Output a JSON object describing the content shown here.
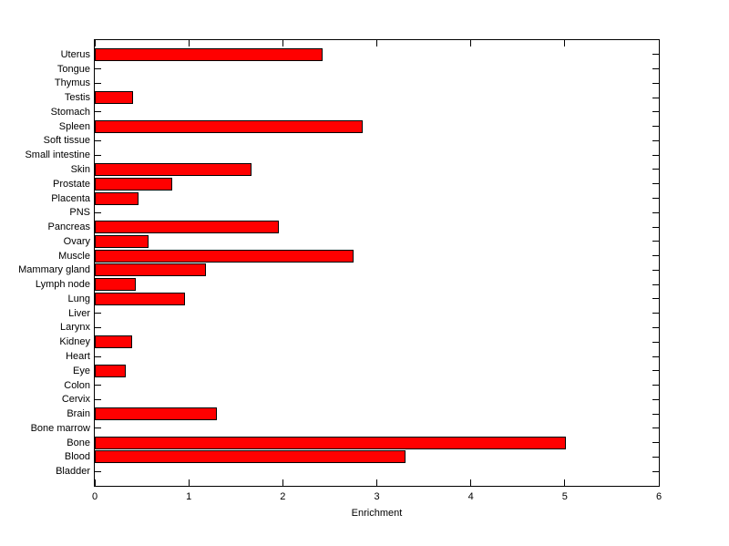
{
  "figure": {
    "background_color": "#ffffff"
  },
  "chart_data": {
    "type": "bar",
    "orientation": "horizontal",
    "title": "",
    "xlabel": "Enrichment",
    "ylabel": "",
    "xlim": [
      0,
      6
    ],
    "xticks": [
      0,
      1,
      2,
      3,
      4,
      5,
      6
    ],
    "grid": false,
    "bar_color": "#ff0000",
    "bar_edge_color": "#000000",
    "axis_color": "#000000",
    "categories": [
      "Uterus",
      "Tongue",
      "Thymus",
      "Testis",
      "Stomach",
      "Spleen",
      "Soft tissue",
      "Small intestine",
      "Skin",
      "Prostate",
      "Placenta",
      "PNS",
      "Pancreas",
      "Ovary",
      "Muscle",
      "Mammary gland",
      "Lymph node",
      "Lung",
      "Liver",
      "Larynx",
      "Kidney",
      "Heart",
      "Eye",
      "Colon",
      "Cervix",
      "Brain",
      "Bone marrow",
      "Bone",
      "Blood",
      "Bladder"
    ],
    "values": [
      2.42,
      0,
      0,
      0.41,
      0,
      2.85,
      0,
      0,
      1.67,
      0.82,
      0.47,
      0,
      1.96,
      0.57,
      2.75,
      1.18,
      0.44,
      0.96,
      0,
      0,
      0.4,
      0,
      0.33,
      0,
      0,
      1.3,
      0,
      5.01,
      3.31,
      0
    ]
  }
}
